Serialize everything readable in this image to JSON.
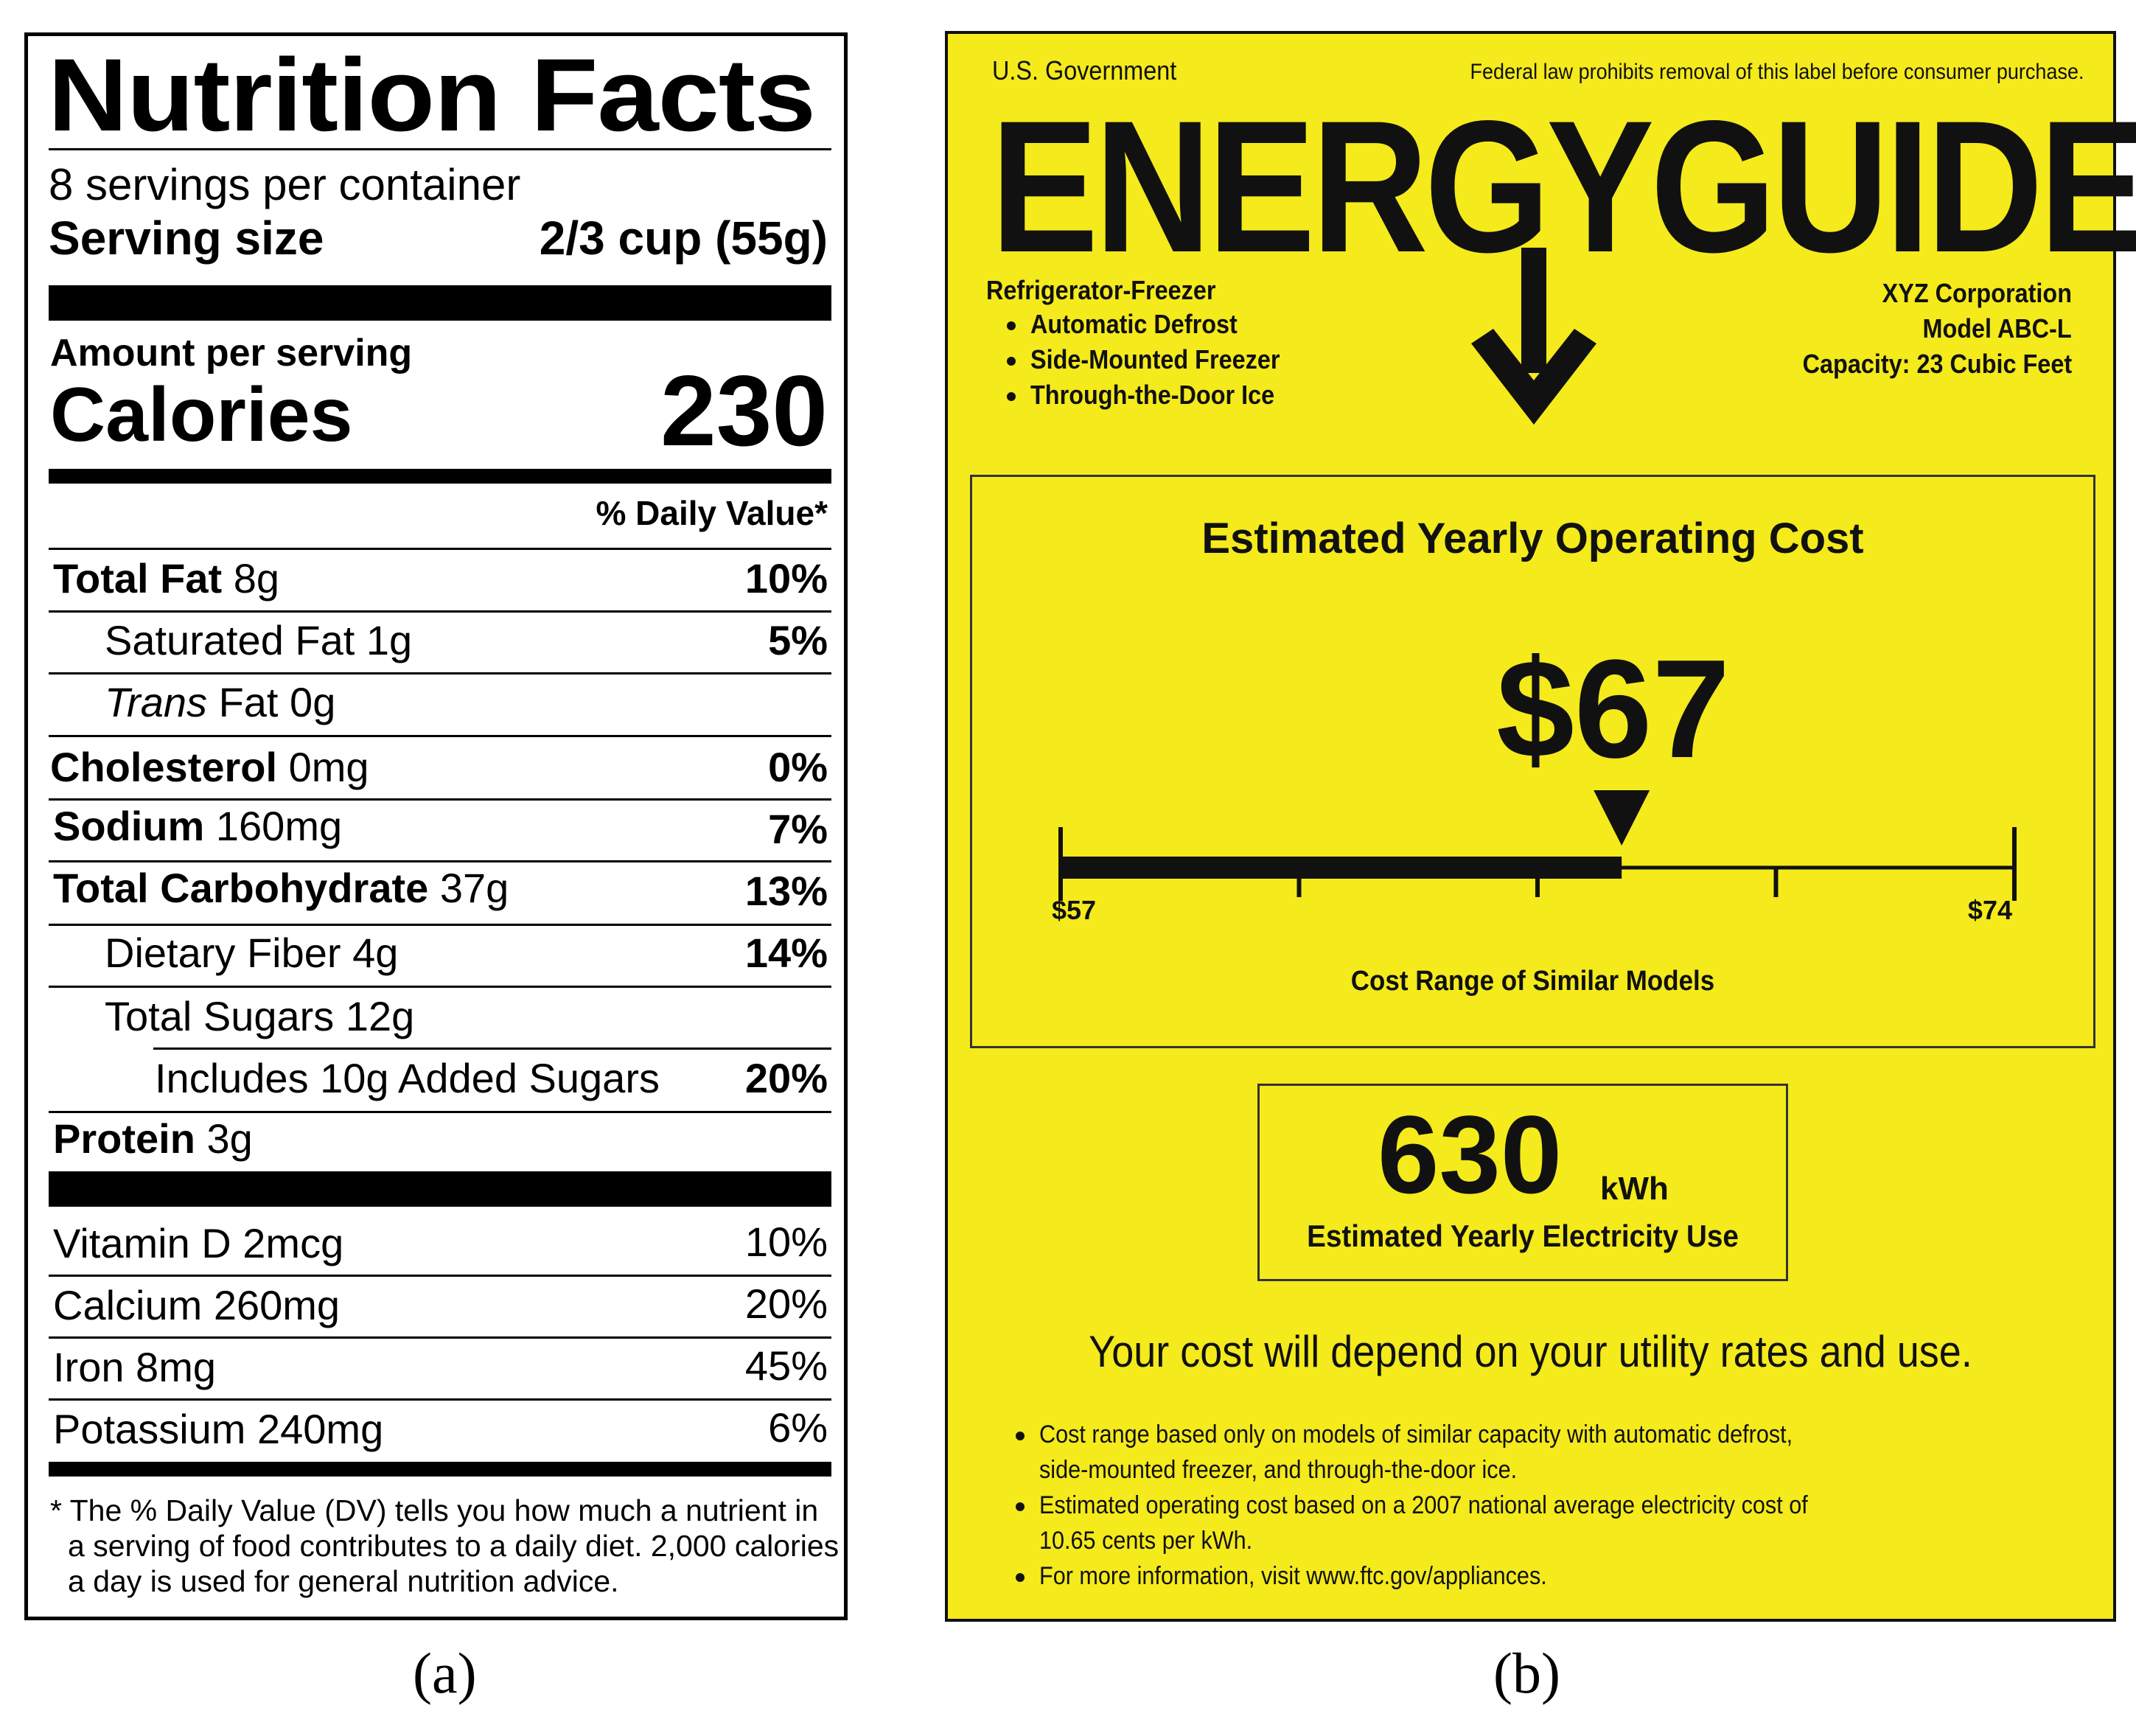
{
  "nutrition": {
    "title": "Nutrition Facts",
    "servings": "8 servings per container",
    "serving_size_label": "Serving size",
    "serving_size_value": "2/3 cup (55g)",
    "amount_per_serving": "Amount per serving",
    "calories_label": "Calories",
    "calories_value": "230",
    "daily_value_header": "% Daily Value*",
    "rows": [
      {
        "name": "Total Fat",
        "amount": "8g",
        "dv": "10%"
      },
      {
        "name": "Saturated Fat",
        "amount": "1g",
        "dv": "5%"
      },
      {
        "name_italic": "Trans",
        "name": "Fat",
        "amount": "0g",
        "dv": ""
      },
      {
        "name": "Cholesterol",
        "amount": "0mg",
        "dv": "0%"
      },
      {
        "name": "Sodium",
        "amount": "160mg",
        "dv": "7%"
      },
      {
        "name": "Total Carbohydrate",
        "amount": "37g",
        "dv": "13%"
      },
      {
        "name": "Dietary Fiber",
        "amount": "4g",
        "dv": "14%"
      },
      {
        "name": "Total Sugars",
        "amount": "12g",
        "dv": ""
      },
      {
        "name": "Includes 10g Added Sugars",
        "amount": "",
        "dv": "20%"
      },
      {
        "name": "Protein",
        "amount": "3g",
        "dv": ""
      }
    ],
    "vitamins": [
      {
        "label": "Vitamin D 2mcg",
        "dv": "10%"
      },
      {
        "label": "Calcium 260mg",
        "dv": "20%"
      },
      {
        "label": "Iron 8mg",
        "dv": "45%"
      },
      {
        "label": "Potassium 240mg",
        "dv": "6%"
      }
    ],
    "footnote": [
      "* The % Daily Value (DV) tells you how much a nutrient in",
      "a serving of food contributes to a daily diet. 2,000 calories",
      "a day is used for general nutrition advice."
    ]
  },
  "energy": {
    "gov_label": "U.S. Government",
    "law_notice": "Federal law prohibits removal of this label before consumer purchase.",
    "logo": "ENERGYGUIDE",
    "product_type": "Refrigerator-Freezer",
    "features": [
      "Automatic Defrost",
      "Side-Mounted Freezer",
      "Through-the-Door Ice"
    ],
    "manufacturer": "XYZ Corporation",
    "model": "Model ABC-L",
    "capacity": "Capacity: 23 Cubic Feet",
    "cost_heading": "Estimated Yearly Operating Cost",
    "cost_value": "$67",
    "cost_amount": 67,
    "range_min": 57,
    "range_max": 74,
    "range_min_label": "$57",
    "range_max_label": "$74",
    "range_caption": "Cost Range of Similar Models",
    "kwh_value": "630",
    "kwh_unit": "kWh",
    "kwh_caption": "Estimated Yearly Electricity Use",
    "depend_notice": "Your cost will depend on your utility rates and use.",
    "notes": [
      "Cost range based only on models of similar capacity with automatic defrost,",
      "side-mounted freezer, and through-the-door ice.",
      "Estimated operating cost based on a 2007 national average electricity cost of",
      "10.65 cents per kWh.",
      "For more information, visit www.ftc.gov/appliances."
    ]
  },
  "captions": {
    "a": "(a)",
    "b": "(b)"
  }
}
